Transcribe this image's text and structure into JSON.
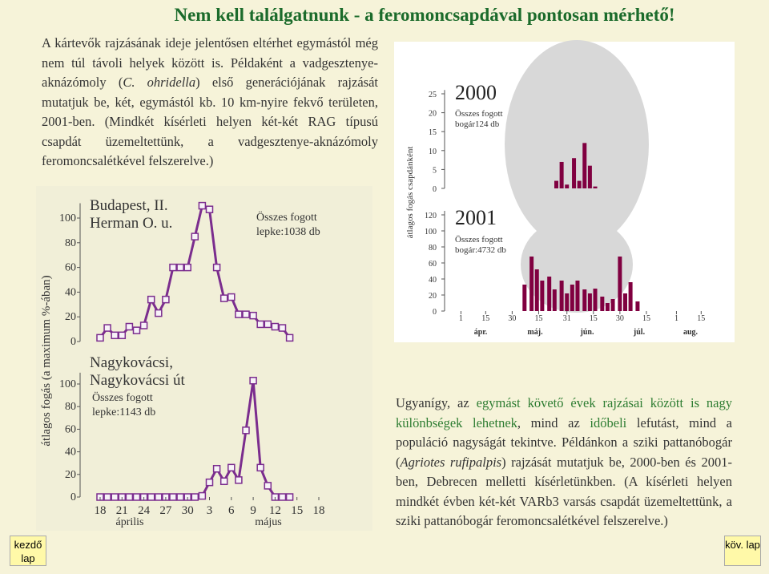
{
  "title": "Nem kell találgatnunk - a feromoncsapdával pontosan mérhető!",
  "intro": [
    {
      "text": "A kártevők rajzásának ideje jelentősen eltérhet egymástól még nem túl távoli helyek között is. Példaként a vadgesztenye-aknázómoly ("
    },
    {
      "text": "C. ohridella",
      "italic": true
    },
    {
      "text": ") első generációjának rajzását mutatjuk be, két, egymástól kb. 10 km-nyire fekvő területen, 2001-ben. (Mindkét kísérleti helyen két-két RAG típusú csapdát üzemeltettünk, a vadgesztenye-aknázómoly feromoncsalétkével felszerelve.)"
    }
  ],
  "summary": [
    {
      "text": "Ugyanígy, az "
    },
    {
      "text": "egymást követő évek rajzásai között is nagy különbségek lehetnek",
      "highlight": true
    },
    {
      "text": ", mind az "
    },
    {
      "text": "időbeli",
      "highlight": true
    },
    {
      "text": " lefutást, mind a populáció nagyságát tekintve. Példánkon a sziki pattanóbogár ("
    },
    {
      "text": "Agriotes rufipalpis",
      "italic": true
    },
    {
      "text": ") rajzását mutatjuk be, 2000-ben és 2001-ben, Debrecen melletti kísérletünkben. (A kísérleti helyen mindkét évben két-két VARb3 varsás csapdát üzemeltettünk, a sziki pattanóbogár feromoncsalétkével felszerelve.)"
    }
  ],
  "nav": {
    "home": "kezdő lap",
    "next": "köv. lap"
  },
  "chart_data": [
    {
      "type": "line",
      "y_label": "átlagos fogás (a maximum %-ában)",
      "color": "#7b2d8e",
      "xlim": [
        -1,
        31
      ],
      "xticks": [
        {
          "value": 0,
          "label": "18"
        },
        {
          "value": 3,
          "label": "21"
        },
        {
          "value": 6,
          "label": "24"
        },
        {
          "value": 9,
          "label": "27"
        },
        {
          "value": 12,
          "label": "30"
        },
        {
          "value": 15,
          "label": "3"
        },
        {
          "value": 18,
          "label": "6"
        },
        {
          "value": 21,
          "label": "9"
        },
        {
          "value": 24,
          "label": "12"
        },
        {
          "value": 27,
          "label": "15"
        },
        {
          "value": 30,
          "label": "18"
        }
      ],
      "month_labels": [
        "április",
        "május"
      ],
      "panels": [
        {
          "title": [
            "Budapest, II.",
            "Herman O. u."
          ],
          "note": [
            "Összes fogott",
            "lepke:1038 db"
          ],
          "ylim": [
            0,
            112
          ],
          "yticks": [
            0,
            20,
            40,
            60,
            80,
            100
          ],
          "x": [
            0,
            1,
            2,
            3,
            4,
            5,
            6,
            7,
            8,
            9,
            10,
            11,
            12,
            13,
            14,
            15,
            16,
            17,
            18,
            19,
            20,
            21,
            22,
            23,
            24,
            25,
            26
          ],
          "values": [
            3,
            11,
            5,
            5,
            12,
            9,
            13,
            34,
            23,
            34,
            60,
            60,
            60,
            85,
            110,
            107,
            60,
            35,
            36,
            22,
            22,
            21,
            14,
            14,
            12,
            11,
            3
          ]
        },
        {
          "title": [
            "Nagykovácsi,",
            "Nagykovácsi út"
          ],
          "note": [
            "Összes fogott",
            "lepke:1143 db"
          ],
          "ylim": [
            0,
            110
          ],
          "yticks": [
            0,
            20,
            40,
            60,
            80,
            100
          ],
          "x": [
            0,
            1,
            2,
            3,
            4,
            5,
            6,
            7,
            8,
            9,
            10,
            11,
            12,
            13,
            14,
            15,
            16,
            17,
            18,
            19,
            20,
            21,
            22,
            23,
            24,
            25,
            26
          ],
          "values": [
            0,
            0,
            0,
            0,
            0,
            0,
            0,
            0,
            0,
            0,
            0,
            0,
            0,
            0,
            1,
            13,
            25,
            14,
            26,
            15,
            59,
            103,
            26,
            10,
            0,
            0,
            0
          ]
        }
      ]
    },
    {
      "type": "bar",
      "y_label": "átlagos fogás csapdánként",
      "color": "#800040",
      "xlim": [
        -7,
        154
      ],
      "xticks": [
        {
          "value": 0,
          "label": "1"
        },
        {
          "value": 14,
          "label": "15"
        },
        {
          "value": 29,
          "label": "30"
        },
        {
          "value": 44,
          "label": "15"
        },
        {
          "value": 60,
          "label": "31"
        },
        {
          "value": 75,
          "label": "15"
        },
        {
          "value": 90,
          "label": "30"
        },
        {
          "value": 105,
          "label": "15"
        },
        {
          "value": 122,
          "label": "1"
        },
        {
          "value": 136,
          "label": "15"
        }
      ],
      "month_labels": [
        "ápr.",
        "máj.",
        "jún.",
        "júl.",
        "aug."
      ],
      "panels": [
        {
          "title": "2000",
          "note": [
            "Összes fogott",
            "bogár124 db"
          ],
          "ylim": [
            0,
            26
          ],
          "yticks": [
            0,
            5,
            10,
            15,
            20,
            25
          ],
          "x": [
            54,
            57,
            60,
            64,
            67,
            70,
            73,
            76
          ],
          "values": [
            2,
            7,
            1,
            8,
            2,
            12,
            6,
            0.5
          ]
        },
        {
          "title": "2001",
          "note": [
            "Összes fogott",
            "bogár:4732 db"
          ],
          "ylim": [
            0,
            125
          ],
          "yticks": [
            0,
            20,
            40,
            60,
            80,
            100,
            120
          ],
          "x": [
            36,
            40,
            43,
            46,
            50,
            53,
            57,
            60,
            63,
            66,
            70,
            73,
            76,
            80,
            83,
            86,
            90,
            93,
            96,
            100
          ],
          "values": [
            33,
            68,
            52,
            38,
            43,
            27,
            38,
            22,
            33,
            38,
            27,
            22,
            28,
            18,
            10,
            15,
            68,
            22,
            36,
            12
          ]
        }
      ]
    }
  ]
}
